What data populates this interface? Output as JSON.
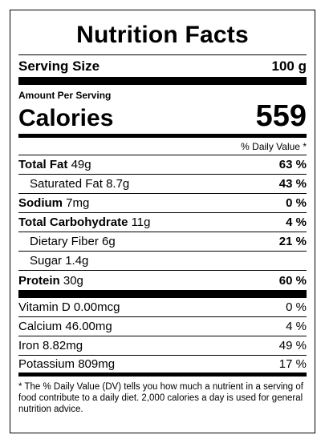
{
  "title": "Nutrition Facts",
  "serving": {
    "label": "Serving Size",
    "value": "100 g"
  },
  "amount_per_serving": "Amount Per Serving",
  "calories": {
    "label": "Calories",
    "value": "559"
  },
  "daily_value_header": "% Daily Value *",
  "nutrients": [
    {
      "name": "Total Fat",
      "amount": "49g",
      "pct": "63 %"
    },
    {
      "name": "Saturated Fat",
      "amount": "8.7g",
      "pct": "43 %"
    },
    {
      "name": "Sodium",
      "amount": "7mg",
      "pct": "0 %"
    },
    {
      "name": "Total Carbohydrate",
      "amount": "11g",
      "pct": "4 %"
    },
    {
      "name": "Dietary Fiber",
      "amount": "6g",
      "pct": "21 %"
    },
    {
      "name": "Sugar",
      "amount": "1.4g",
      "pct": ""
    },
    {
      "name": "Protein",
      "amount": "30g",
      "pct": "60 %"
    }
  ],
  "vitamins": [
    {
      "name": "Vitamin D",
      "amount": "0.00mcg",
      "pct": "0 %"
    },
    {
      "name": "Calcium",
      "amount": "46.00mg",
      "pct": "4 %"
    },
    {
      "name": "Iron",
      "amount": "8.82mg",
      "pct": "49 %"
    },
    {
      "name": "Potassium",
      "amount": "809mg",
      "pct": "17 %"
    }
  ],
  "footnote": "* The % Daily Value (DV) tells you how much a nutrient in a serving of food contribute to a daily diet. 2,000 calories a day is used for general nutrition advice."
}
